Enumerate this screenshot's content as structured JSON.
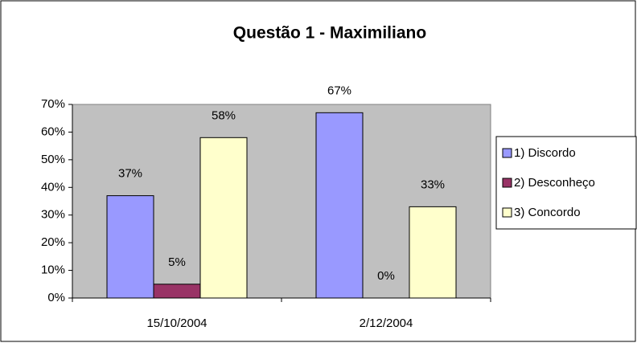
{
  "chart_data": {
    "type": "bar",
    "title": "Questão 1 - Maximiliano",
    "categories": [
      "15/10/2004",
      "2/12/2004"
    ],
    "series": [
      {
        "name": "1) Discordo",
        "color": "#9999ff",
        "values": [
          37,
          67
        ],
        "value_labels": [
          "37%",
          "67%"
        ]
      },
      {
        "name": "2) Desconheço",
        "color": "#993366",
        "values": [
          5,
          0
        ],
        "value_labels": [
          "5%",
          "0%"
        ]
      },
      {
        "name": "3) Concordo",
        "color": "#ffffcc",
        "values": [
          58,
          33
        ],
        "value_labels": [
          "58%",
          "33%"
        ]
      }
    ],
    "ylim": [
      0,
      70
    ],
    "yticks": [
      {
        "value": 0,
        "label": "0%"
      },
      {
        "value": 10,
        "label": "10%"
      },
      {
        "value": 20,
        "label": "20%"
      },
      {
        "value": 30,
        "label": "30%"
      },
      {
        "value": 40,
        "label": "40%"
      },
      {
        "value": 50,
        "label": "50%"
      },
      {
        "value": 60,
        "label": "60%"
      },
      {
        "value": 70,
        "label": "70%"
      }
    ],
    "legend": "right",
    "plot_background": "#c0c0c0"
  }
}
